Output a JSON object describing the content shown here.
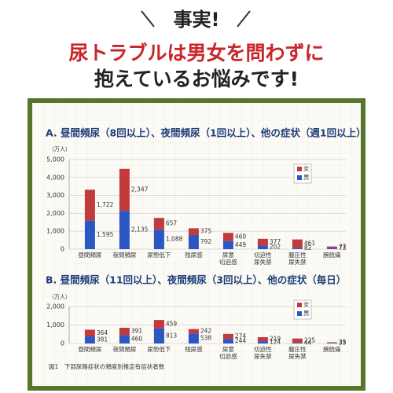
{
  "header": {
    "title": "事実!",
    "line1": "尿トラブルは男女を問わずに",
    "line2": "抱えているお悩みです!"
  },
  "chart_data": [
    {
      "type": "bar",
      "stacked": true,
      "title": "A. 昼間頻尿（8回以上）、夜間頻尿（1回以上）、他の症状（週1回以上）",
      "y_label": "（万人）",
      "categories": [
        "昼間頻尿",
        "夜間頻尿",
        "尿勢低下",
        "残尿感",
        [
          "尿意",
          "切迫感"
        ],
        [
          "切迫性",
          "尿失禁"
        ],
        [
          "腹圧性",
          "尿失禁"
        ],
        "膀胱痛"
      ],
      "series": [
        {
          "name": "男",
          "color": "#2b57c4",
          "values": [
            1595,
            2135,
            1088,
            792,
            449,
            202,
            82,
            73
          ],
          "value_labels": [
            "1,595",
            "2,135",
            "1,088",
            "792",
            "449",
            "202",
            "82",
            "73"
          ]
        },
        {
          "name": "女",
          "color": "#c23a3c",
          "values": [
            1722,
            2347,
            657,
            375,
            460,
            377,
            461,
            77
          ],
          "value_labels": [
            "1,722",
            "2,347",
            "657",
            "375",
            "460",
            "377",
            "461",
            "77"
          ]
        }
      ],
      "ylim": [
        0,
        5000
      ],
      "yticks": [
        0,
        {
          "value": 1000,
          "label": "1,000"
        },
        {
          "value": 2000,
          "label": "2,000"
        },
        {
          "value": 3000,
          "label": "3,000"
        },
        {
          "value": 4000,
          "label": "4,000"
        },
        {
          "value": 5000,
          "label": "5,000"
        }
      ],
      "grid": true,
      "legend": "upper right"
    },
    {
      "type": "bar",
      "stacked": true,
      "title": "B. 昼間頻尿（11回以上）、夜間頻尿（3回以上）、他の症状（毎日）",
      "y_label": "（万人）",
      "categories": [
        "昼間頻尿",
        "夜間頻尿",
        "尿勢低下",
        "残尿感",
        [
          "尿意",
          "切迫感"
        ],
        [
          "切迫性",
          "尿失禁"
        ],
        [
          "腹圧性",
          "尿失禁"
        ],
        "膀胱痛"
      ],
      "series": [
        {
          "name": "男",
          "color": "#2b57c4",
          "values": [
            381,
            460,
            813,
            538,
            244,
            124,
            44,
            33
          ]
        },
        {
          "name": "女",
          "color": "#c23a3c",
          "values": [
            364,
            391,
            459,
            242,
            274,
            219,
            225,
            35
          ]
        }
      ],
      "ylim": [
        0,
        2000
      ],
      "yticks": [
        0,
        {
          "value": 1000,
          "label": "1,000"
        },
        {
          "value": 2000,
          "label": "2,000"
        }
      ],
      "grid": true,
      "legend": "upper right"
    }
  ],
  "caption": "図1　下部尿路症状の頻度別推定有症状者数"
}
